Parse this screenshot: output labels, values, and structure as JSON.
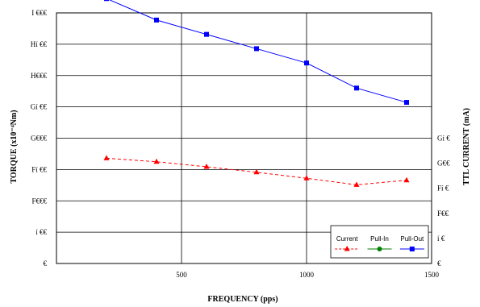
{
  "chart_data": {
    "type": "line",
    "xlabel": "FREQUENCY (pps)",
    "ylabel": "TORQUE (x10⁻⁴Nm)",
    "ylabel_right": "TTL CURRENT (mA)",
    "xlim": [
      0,
      1500
    ],
    "ylim": [
      0,
      3500
    ],
    "ylim_right": [
      0,
      500
    ],
    "grid": true,
    "legend_position": "bottom-right",
    "x_ticks": [
      "500",
      "1000",
      "1500"
    ],
    "x_tick_values": [
      500,
      1000,
      1500
    ],
    "y_ticks": [
      "€",
      "í €€",
      "F€€€",
      "Fí €€",
      "G€€€",
      "Gí €€",
      "H€€€",
      "Hí €€",
      "I €€€"
    ],
    "y_tick_values": [
      0,
      500,
      1000,
      1500,
      2000,
      2500,
      3000,
      3500,
      4000
    ],
    "y_right_ticks": [
      "€",
      "í €",
      "F€€",
      "Fí €",
      "G€€",
      "Gí €"
    ],
    "y_right_tick_values": [
      0,
      50,
      100,
      150,
      200,
      250
    ],
    "series": [
      {
        "name": "Current",
        "axis": "right",
        "color": "#ff0000",
        "dash": true,
        "marker": "triangle",
        "x": [
          200,
          400,
          600,
          800,
          1000,
          1200,
          1400
        ],
        "values": [
          210,
          203,
          193,
          182,
          170,
          157,
          166
        ]
      },
      {
        "name": "Pull-In",
        "axis": "left",
        "color": "#008000",
        "dash": false,
        "marker": "circle",
        "x": [],
        "values": []
      },
      {
        "name": "Pull-Out",
        "axis": "left",
        "color": "#0000ff",
        "dash": false,
        "marker": "square",
        "x": [
          200,
          400,
          600,
          800,
          1000,
          1200,
          1400
        ],
        "values": [
          3700,
          3400,
          3200,
          3000,
          2800,
          2450,
          2250
        ]
      }
    ]
  }
}
